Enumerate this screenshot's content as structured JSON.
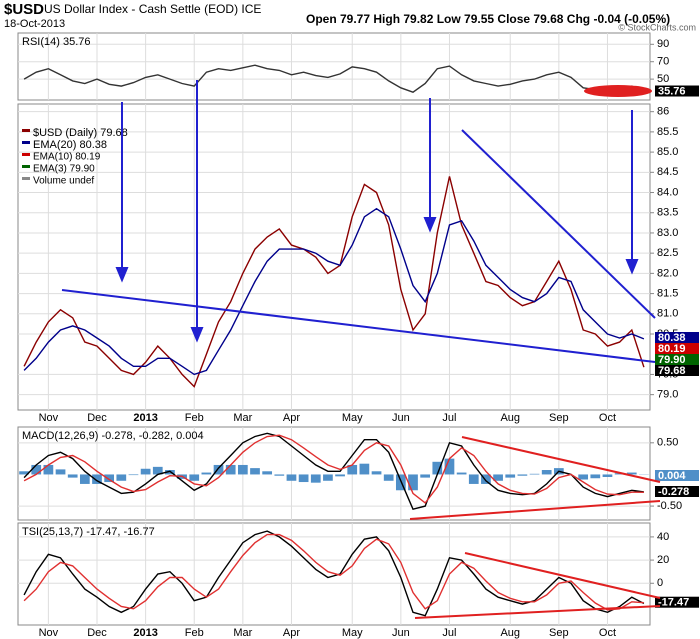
{
  "header": {
    "symbol": "$USD",
    "name": "US Dollar Index - Cash Settle (EOD) ICE",
    "date": "18-Oct-2013",
    "quote": "Open 79.77  High 79.82  Low 79.55  Close 79.68  Chg -0.04 (-0.05%)",
    "credit": "© StockCharts.com"
  },
  "chart_data": [
    {
      "type": "line",
      "title": "RSI(14) 35.76",
      "ylim": [
        26,
        103
      ],
      "yticks": [
        90,
        70,
        50
      ],
      "grid": true,
      "series": [
        {
          "color": "#333333",
          "values": [
            50,
            58,
            62,
            55,
            48,
            45,
            50,
            44,
            42,
            46,
            52,
            55,
            50,
            45,
            42,
            58,
            62,
            60,
            63,
            66,
            62,
            60,
            55,
            58,
            54,
            52,
            56,
            64,
            62,
            58,
            48,
            40,
            35,
            45,
            62,
            65,
            55,
            48,
            45,
            42,
            44,
            48,
            50,
            55,
            58,
            52,
            40,
            38,
            36,
            38,
            42,
            35.76
          ]
        }
      ],
      "value_boxes": [
        {
          "label": "35.76",
          "color": "#000000"
        }
      ]
    },
    {
      "type": "line",
      "ylim": [
        78.62,
        86.19
      ],
      "yticks": [
        86,
        85.5,
        {
          "value": 85,
          "label": "85.0"
        },
        84.5,
        {
          "value": 84,
          "label": "84.0"
        },
        83.5,
        {
          "value": 83,
          "label": "83.0"
        },
        82.5,
        {
          "value": 82,
          "label": "82.0"
        },
        81.5,
        {
          "value": 81,
          "label": "81.0"
        },
        80.5,
        79.5,
        {
          "value": 79,
          "label": "79.0"
        }
      ],
      "grid": true,
      "categories": [
        null,
        null,
        "Nov",
        null,
        null,
        null,
        "Dec",
        null,
        null,
        null,
        "2013",
        null,
        null,
        null,
        "Feb",
        null,
        null,
        null,
        "Mar",
        null,
        null,
        null,
        "Apr",
        null,
        null,
        null,
        null,
        "May",
        null,
        null,
        null,
        "Jun",
        null,
        null,
        null,
        "Jul",
        null,
        null,
        null,
        null,
        "Aug",
        null,
        null,
        null,
        "Sep",
        null,
        null,
        null,
        "Oct",
        null,
        null,
        null
      ],
      "series": [
        {
          "name": "$USD (Daily) 79.68",
          "color": "#8b0000",
          "values": [
            79.7,
            80.3,
            80.8,
            81.1,
            80.9,
            80.3,
            80.2,
            79.9,
            79.6,
            79.5,
            79.8,
            80.2,
            79.9,
            79.5,
            79.2,
            80.0,
            80.8,
            81.3,
            82.0,
            82.6,
            82.9,
            83.1,
            82.7,
            82.6,
            82.4,
            82.0,
            82.2,
            83.4,
            84.2,
            84.0,
            83.2,
            81.6,
            80.6,
            81.0,
            83.0,
            84.4,
            83.2,
            82.5,
            81.8,
            81.7,
            81.4,
            81.2,
            81.3,
            81.8,
            82.3,
            81.6,
            80.6,
            80.5,
            80.2,
            80.3,
            80.6,
            79.68
          ]
        },
        {
          "name": "EMA(20) 80.38",
          "color": "#00008b",
          "values": [
            79.6,
            79.9,
            80.3,
            80.6,
            80.7,
            80.6,
            80.4,
            80.2,
            79.9,
            79.7,
            79.7,
            79.9,
            79.9,
            79.7,
            79.5,
            79.6,
            80.1,
            80.6,
            81.2,
            81.8,
            82.3,
            82.6,
            82.6,
            82.6,
            82.5,
            82.3,
            82.2,
            82.7,
            83.4,
            83.6,
            83.4,
            82.6,
            81.7,
            81.3,
            82.0,
            83.2,
            83.3,
            82.8,
            82.2,
            81.9,
            81.6,
            81.4,
            81.3,
            81.5,
            81.9,
            81.8,
            81.1,
            80.8,
            80.5,
            80.4,
            80.5,
            80.38
          ]
        }
      ],
      "legend_notes": [
        {
          "text": "EMA(10) 80.19",
          "color": "#cc0000"
        },
        {
          "text": "EMA(3) 79.90",
          "color": "#006400"
        },
        {
          "text": "Volume undef",
          "color": "#888888"
        }
      ],
      "value_boxes": [
        {
          "label": "80.38",
          "color": "#00008b"
        },
        {
          "label": "80.19",
          "color": "#cc0000"
        },
        {
          "label": "79.90",
          "color": "#006400"
        },
        {
          "label": "79.68",
          "color": "#000000"
        }
      ]
    },
    {
      "type": "line",
      "title": "MACD(12,26,9) -0.278, -0.282, 0.004",
      "ylim": [
        -0.72,
        0.75
      ],
      "yticks": [
        {
          "value": 0.5,
          "label": "0.50"
        },
        {
          "value": -0.5,
          "label": "-0.50"
        }
      ],
      "grid": true,
      "series": [
        {
          "type": "bar",
          "color": "#4f8fc8",
          "values": [
            0.05,
            0.15,
            0.15,
            0.08,
            -0.05,
            -0.15,
            -0.15,
            -0.12,
            -0.1,
            -0.01,
            0.09,
            0.12,
            0.07,
            -0.07,
            -0.1,
            0.03,
            0.15,
            0.15,
            0.15,
            0.1,
            0.05,
            -0.02,
            -0.1,
            -0.12,
            -0.13,
            -0.1,
            -0.03,
            0.15,
            0.17,
            0.05,
            -0.1,
            -0.25,
            -0.25,
            -0.05,
            0.2,
            0.25,
            0.03,
            -0.15,
            -0.15,
            -0.1,
            -0.05,
            -0.02,
            0.01,
            0.07,
            0.1,
            0.0,
            -0.08,
            -0.06,
            -0.04,
            0.02,
            0.03,
            0.004
          ]
        },
        {
          "color": "#000000",
          "values": [
            -0.05,
            0.15,
            0.3,
            0.35,
            0.25,
            0.05,
            -0.1,
            -0.2,
            -0.3,
            -0.28,
            -0.15,
            0.0,
            0.05,
            -0.1,
            -0.25,
            -0.15,
            0.1,
            0.3,
            0.5,
            0.6,
            0.65,
            0.6,
            0.45,
            0.3,
            0.15,
            0.05,
            0.05,
            0.3,
            0.55,
            0.55,
            0.35,
            -0.1,
            -0.55,
            -0.5,
            0.0,
            0.5,
            0.45,
            0.15,
            -0.1,
            -0.25,
            -0.3,
            -0.32,
            -0.3,
            -0.15,
            0.05,
            0.0,
            -0.2,
            -0.3,
            -0.35,
            -0.3,
            -0.25,
            -0.278
          ]
        },
        {
          "color": "#e03030",
          "values": [
            -0.1,
            0.0,
            0.15,
            0.27,
            0.3,
            0.2,
            0.05,
            -0.08,
            -0.2,
            -0.27,
            -0.24,
            -0.12,
            -0.02,
            -0.03,
            -0.15,
            -0.18,
            -0.05,
            0.15,
            0.35,
            0.5,
            0.6,
            0.62,
            0.55,
            0.42,
            0.28,
            0.15,
            0.08,
            0.15,
            0.38,
            0.5,
            0.45,
            0.15,
            -0.3,
            -0.45,
            -0.2,
            0.25,
            0.42,
            0.3,
            0.05,
            -0.15,
            -0.25,
            -0.3,
            -0.31,
            -0.22,
            -0.05,
            0.0,
            -0.12,
            -0.24,
            -0.31,
            -0.32,
            -0.28,
            -0.282
          ]
        }
      ],
      "value_boxes": [
        {
          "label": "0.004",
          "color": "#4f8fc8"
        },
        {
          "label": "-0.278",
          "color": "#000000"
        }
      ]
    },
    {
      "type": "line",
      "title": "TSI(25,13,7) -17.47, -16.77",
      "ylim": [
        -36,
        52
      ],
      "yticks": [
        40,
        20,
        0
      ],
      "grid": true,
      "categories": [
        null,
        null,
        "Nov",
        null,
        null,
        null,
        "Dec",
        null,
        null,
        null,
        "2013",
        null,
        null,
        null,
        "Feb",
        null,
        null,
        null,
        "Mar",
        null,
        null,
        null,
        "Apr",
        null,
        null,
        null,
        null,
        "May",
        null,
        null,
        null,
        "Jun",
        null,
        null,
        null,
        "Jul",
        null,
        null,
        null,
        null,
        "Aug",
        null,
        null,
        null,
        "Sep",
        null,
        null,
        null,
        "Oct",
        null,
        null,
        null
      ],
      "series": [
        {
          "color": "#000000",
          "values": [
            -10,
            10,
            25,
            22,
            8,
            -5,
            -12,
            -20,
            -25,
            -20,
            -5,
            8,
            10,
            0,
            -15,
            -12,
            5,
            20,
            35,
            42,
            45,
            40,
            32,
            22,
            12,
            5,
            8,
            25,
            38,
            40,
            28,
            5,
            -25,
            -28,
            -5,
            22,
            20,
            8,
            -5,
            -12,
            -15,
            -18,
            -15,
            -5,
            5,
            0,
            -15,
            -22,
            -25,
            -20,
            -12,
            -17.47
          ]
        },
        {
          "color": "#e03030",
          "values": [
            -15,
            -5,
            10,
            18,
            15,
            5,
            -5,
            -13,
            -20,
            -22,
            -15,
            -3,
            5,
            5,
            -5,
            -12,
            -5,
            10,
            24,
            35,
            42,
            42,
            37,
            28,
            18,
            10,
            7,
            15,
            30,
            38,
            34,
            18,
            -8,
            -22,
            -15,
            8,
            18,
            13,
            2,
            -8,
            -13,
            -16,
            -16,
            -10,
            0,
            2,
            -8,
            -17,
            -23,
            -22,
            -16,
            -16.77
          ]
        }
      ],
      "value_boxes": [
        {
          "label": "-17.47",
          "color": "#000000"
        }
      ]
    }
  ]
}
